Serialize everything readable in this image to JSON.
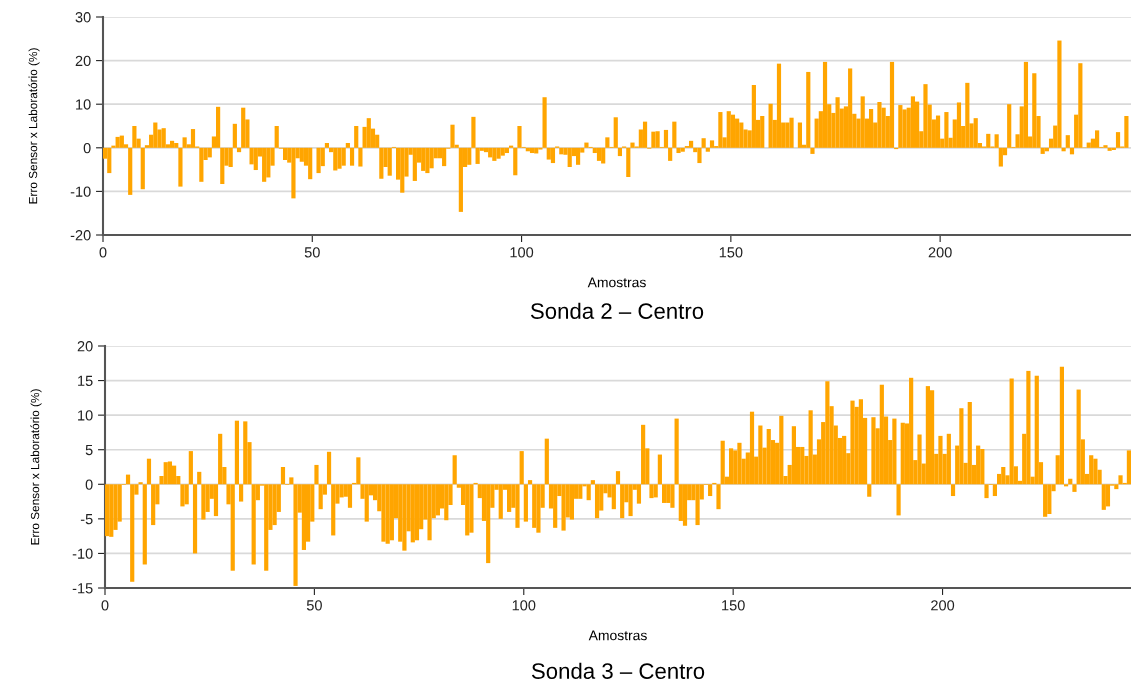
{
  "chart_data": [
    {
      "type": "bar",
      "title": "Sonda 2 – Centro",
      "xlabel": "Amostras",
      "ylabel": "Erro Sensor x Laboratório (%)",
      "color": "#ffa500",
      "grid": "y",
      "xlim": [
        0,
        245.6
      ],
      "xticks": [
        0,
        50,
        100,
        150,
        200
      ],
      "ylim": [
        -20,
        30
      ],
      "yticks": [
        -20,
        -10,
        0,
        10,
        20,
        30
      ],
      "x": [
        1,
        2,
        3,
        4,
        5,
        6,
        7,
        8,
        9,
        10,
        11,
        12,
        13,
        14,
        15,
        16,
        17,
        18,
        19,
        20,
        21,
        22,
        23,
        24,
        25,
        26,
        27,
        28,
        29,
        30,
        31,
        32,
        33,
        34,
        35,
        36,
        37,
        38,
        39,
        40,
        41,
        42,
        43,
        44,
        45,
        46,
        47,
        48,
        49,
        50,
        51,
        52,
        53,
        54,
        55,
        56,
        57,
        58,
        59,
        60,
        61,
        62,
        63,
        64,
        65,
        66,
        67,
        68,
        69,
        70,
        71,
        72,
        73,
        74,
        75,
        76,
        77,
        78,
        79,
        80,
        81,
        82,
        83,
        84,
        85,
        86,
        87,
        88,
        89,
        90,
        91,
        92,
        93,
        94,
        95,
        96,
        97,
        98,
        99,
        100,
        101,
        102,
        103,
        104,
        105,
        106,
        107,
        108,
        109,
        110,
        111,
        112,
        113,
        114,
        115,
        116,
        117,
        118,
        119,
        120,
        121,
        122,
        123,
        124,
        125,
        126,
        127,
        128,
        129,
        130,
        131,
        132,
        133,
        134,
        135,
        136,
        137,
        138,
        139,
        140,
        141,
        142,
        143,
        144,
        145,
        146,
        147,
        148,
        149,
        150,
        151,
        152,
        153,
        154,
        155,
        156,
        157,
        158,
        159,
        160,
        161,
        162,
        163,
        164,
        165,
        166,
        167,
        168,
        169,
        170,
        171,
        172,
        173,
        174,
        175,
        176,
        177,
        178,
        179,
        180,
        181,
        182,
        183,
        184,
        185,
        186,
        187,
        188,
        189,
        190,
        191,
        192,
        193,
        194,
        195,
        196,
        197,
        198,
        199,
        200,
        201,
        202,
        203,
        204,
        205,
        206,
        207,
        208,
        209,
        210,
        211,
        212,
        213,
        214,
        215,
        216,
        217,
        218,
        219,
        220,
        221,
        222,
        223,
        224,
        225,
        226,
        227,
        228,
        229,
        230,
        231,
        232,
        233,
        234,
        235,
        236,
        237,
        238,
        239,
        240,
        241,
        242,
        243,
        244,
        245
      ],
      "values": [
        -2.5,
        -5.8,
        0.5,
        2.5,
        2.8,
        0.8,
        -10.8,
        5,
        2.1,
        -9.5,
        0.6,
        3,
        5.8,
        4.2,
        4.5,
        0.8,
        1.6,
        1.1,
        -8.9,
        2.4,
        0.8,
        4.3,
        0.3,
        -7.8,
        -2.8,
        -2.2,
        2.6,
        9.4,
        -8.3,
        -4.1,
        -4.4,
        5.5,
        -1,
        9.2,
        6.5,
        -3.8,
        -5.1,
        -2,
        -7.8,
        -6.8,
        -4.1,
        5,
        -0.2,
        -2.8,
        -3.4,
        -11.6,
        -2.4,
        -3.2,
        -4.1,
        -7.2,
        null,
        -5.8,
        -4.2,
        1.1,
        -1,
        -5.2,
        -4.8,
        -4.1,
        1.1,
        -4.1,
        5,
        -4.3,
        4.8,
        6.8,
        4.4,
        3,
        -7.1,
        -4.4,
        -6.4,
        0.2,
        -7.3,
        -10.3,
        -6.6,
        -1.6,
        -7.6,
        -3.4,
        -5.3,
        -5.8,
        -4.7,
        -2.4,
        -2.4,
        -4.2,
        -0.2,
        5.3,
        0.7,
        -14.7,
        -4.4,
        -3.9,
        7.1,
        -3.7,
        -0.7,
        -1.0,
        -2.2,
        -3.0,
        -2.5,
        -1.8,
        -1.2,
        0.5,
        -6.3,
        5,
        0.2,
        -0.8,
        -1.2,
        -1.3,
        -0.4,
        11.6,
        -2.7,
        -3.5,
        0.3,
        -1.5,
        -1.6,
        -4.4,
        -1.9,
        -3.9,
        -1.1,
        1.2,
        0.2,
        -1.2,
        -3.0,
        -3.6,
        2.4,
        0.2,
        7,
        -1.9,
        0.3,
        -6.7,
        1.2,
        0.3,
        4.2,
        6,
        -0.2,
        3.7,
        3.8,
        0.2,
        4.1,
        -3.0,
        6.0,
        -1.2,
        -0.9,
        0.4,
        1.6,
        -1.0,
        -3.5,
        2.2,
        -0.9,
        1.7,
        0.4,
        8.2,
        2.4,
        8.4,
        7.6,
        6.7,
        5.8,
        4.2,
        4.0,
        14.4,
        6.4,
        7.3,
        0,
        10.1,
        6.4,
        19.3,
        5.8,
        5.8,
        6.9,
        null,
        5.8,
        0.7,
        17.4,
        -1.4,
        6.7,
        8.4,
        19.7,
        10.0,
        8.0,
        11.6,
        9.0,
        9.5,
        18.2,
        7.8,
        6.7,
        11.8,
        6.7,
        8.9,
        5.8,
        10.5,
        9.2,
        7.3,
        19.7,
        -0.3,
        9.8,
        8.8,
        9.2,
        11.8,
        10.6,
        3.8,
        14.6,
        9.9,
        6.5,
        7.4,
        2.1,
        8.2,
        2.3,
        6.5,
        10.4,
        5.0,
        14.9,
        5.6,
        6.8,
        1.1,
        0.3,
        3.2,
        0.3,
        3.1,
        -4.3,
        -1.7,
        10.0,
        0.2,
        3.1,
        9.5,
        19.7,
        2.6,
        17.1,
        7.3,
        -1.4,
        -0.8,
        2.1,
        5.1,
        24.6,
        -0.8,
        2.9,
        -1.5,
        7.6,
        19.4,
        0.1,
        1.2,
        2.1,
        4.0,
        0.2,
        0.6,
        -0.7,
        -0.5,
        3.6,
        0.3,
        7.3
      ]
    },
    {
      "type": "bar",
      "title": "Sonda 3 – Centro",
      "xlabel": "Amostras",
      "ylabel": "Erro Sensor x Laboratório (%)",
      "color": "#ffa500",
      "grid": "y",
      "xlim": [
        0,
        245
      ],
      "xticks": [
        0,
        50,
        100,
        150,
        200
      ],
      "ylim": [
        -15,
        20
      ],
      "yticks": [
        -15,
        -10,
        -5,
        0,
        5,
        10,
        15,
        20
      ],
      "x": [
        1,
        2,
        3,
        4,
        5,
        6,
        7,
        8,
        9,
        10,
        11,
        12,
        13,
        14,
        15,
        16,
        17,
        18,
        19,
        20,
        21,
        22,
        23,
        24,
        25,
        26,
        27,
        28,
        29,
        30,
        31,
        32,
        33,
        34,
        35,
        36,
        37,
        38,
        39,
        40,
        41,
        42,
        43,
        44,
        45,
        46,
        47,
        48,
        49,
        50,
        51,
        52,
        53,
        54,
        55,
        56,
        57,
        58,
        59,
        60,
        61,
        62,
        63,
        64,
        65,
        66,
        67,
        68,
        69,
        70,
        71,
        72,
        73,
        74,
        75,
        76,
        77,
        78,
        79,
        80,
        81,
        82,
        83,
        84,
        85,
        86,
        87,
        88,
        89,
        90,
        91,
        92,
        93,
        94,
        95,
        96,
        97,
        98,
        99,
        100,
        101,
        102,
        103,
        104,
        105,
        106,
        107,
        108,
        109,
        110,
        111,
        112,
        113,
        114,
        115,
        116,
        117,
        118,
        119,
        120,
        121,
        122,
        123,
        124,
        125,
        126,
        127,
        128,
        129,
        130,
        131,
        132,
        133,
        134,
        135,
        136,
        137,
        138,
        139,
        140,
        141,
        142,
        143,
        144,
        145,
        146,
        147,
        148,
        149,
        150,
        151,
        152,
        153,
        154,
        155,
        156,
        157,
        158,
        159,
        160,
        161,
        162,
        163,
        164,
        165,
        166,
        167,
        168,
        169,
        170,
        171,
        172,
        173,
        174,
        175,
        176,
        177,
        178,
        179,
        180,
        181,
        182,
        183,
        184,
        185,
        186,
        187,
        188,
        189,
        190,
        191,
        192,
        193,
        194,
        195,
        196,
        197,
        198,
        199,
        200,
        201,
        202,
        203,
        204,
        205,
        206,
        207,
        208,
        209,
        210,
        211,
        212,
        213,
        214,
        215,
        216,
        217,
        218,
        219,
        220,
        221,
        222,
        223,
        224,
        225,
        226,
        227,
        228,
        229,
        230,
        231,
        232,
        233,
        234,
        235,
        236,
        237,
        238,
        239,
        240,
        241,
        242,
        243,
        244,
        245
      ],
      "values": [
        -7.5,
        -7.6,
        -6.6,
        -5.4,
        -0.1,
        1.4,
        -14.1,
        -1.5,
        0.3,
        -11.6,
        3.7,
        -5.9,
        -2.9,
        1.2,
        3.2,
        3.3,
        2.7,
        1.2,
        -3.2,
        -2.9,
        4.8,
        -10.0,
        1.8,
        -5.1,
        -4.0,
        -2.1,
        -4.6,
        7.3,
        2.5,
        -2.9,
        -12.5,
        9.2,
        -2.5,
        9.1,
        6.1,
        -11.6,
        -2.3,
        -0.2,
        -12.5,
        -6.6,
        -5.9,
        -4.0,
        2.5,
        -0.1,
        1.0,
        -14.7,
        -4.1,
        -9.5,
        -8.3,
        -5.4,
        2.8,
        -3.6,
        -1.5,
        4.7,
        -7.4,
        -2.8,
        -1.9,
        -1.8,
        -3.4,
        0.2,
        3.9,
        -2.1,
        -5.4,
        -1.6,
        -2.3,
        -3.9,
        -8.3,
        -8.6,
        -8.1,
        -4.9,
        -8.3,
        -9.6,
        -6.8,
        -8.4,
        -8.1,
        -6.5,
        -5.1,
        -8.1,
        -4.9,
        -4.5,
        -3.5,
        -5.2,
        -3.0,
        4.2,
        -0.5,
        -3.0,
        -7.4,
        -7.0,
        0.2,
        -2.0,
        -5.3,
        -11.4,
        -3.4,
        -0.8,
        -5.0,
        -0.8,
        -4.0,
        -3.4,
        -6.3,
        4.8,
        -5.4,
        0.6,
        -6.3,
        -7.0,
        -3.4,
        6.6,
        -3.5,
        -6.3,
        -1.7,
        -6.7,
        -4.8,
        -5.1,
        -2.1,
        -2.1,
        -0.3,
        -2.3,
        0.6,
        -4.9,
        -3.8,
        -1.3,
        -1.9,
        -3.6,
        1.9,
        -4.9,
        -2.6,
        -4.6,
        -0.8,
        -2.8,
        8.6,
        5.2,
        -2.0,
        -1.9,
        4.3,
        -2.7,
        -2.7,
        -3.4,
        9.5,
        -5.3,
        -6.0,
        -2.3,
        -2.3,
        -5.9,
        -2.2,
        -0.1,
        -1.7,
        0.2,
        -3.6,
        6.3,
        1.1,
        5.2,
        4.9,
        6.0,
        3.7,
        4.6,
        10.5,
        4.0,
        8.5,
        5.3,
        8.0,
        6.4,
        6.0,
        9.9,
        1.2,
        2.8,
        8.4,
        5.4,
        5.4,
        4.1,
        10.7,
        4.3,
        6.5,
        9.0,
        14.9,
        11.3,
        8.5,
        6.7,
        7.0,
        4.5,
        12.1,
        11.2,
        12.3,
        9.6,
        -1.8,
        9.7,
        8.1,
        14.4,
        9.8,
        6.4,
        9.5,
        -4.5,
        8.9,
        8.8,
        15.4,
        3.5,
        7.2,
        3.0,
        14.2,
        13.6,
        4.4,
        7.0,
        4.4,
        7.3,
        -1.7,
        5.6,
        11.0,
        3.1,
        11.9,
        2.8,
        5.6,
        5.1,
        -2.0,
        -0.1,
        -1.7,
        1.5,
        2.5,
        1.3,
        15.3,
        2.6,
        0.5,
        7.3,
        16.4,
        1.1,
        15.7,
        3.2,
        -4.7,
        -4.3,
        -1.0,
        4.2,
        17.0,
        -0.3,
        0.8,
        -1.1,
        13.7,
        6.5,
        1.5,
        4.2,
        3.7,
        2.1,
        -3.7,
        -3.2,
        -0.2,
        -0.7,
        1.3,
        0.2,
        4.9
      ]
    }
  ]
}
